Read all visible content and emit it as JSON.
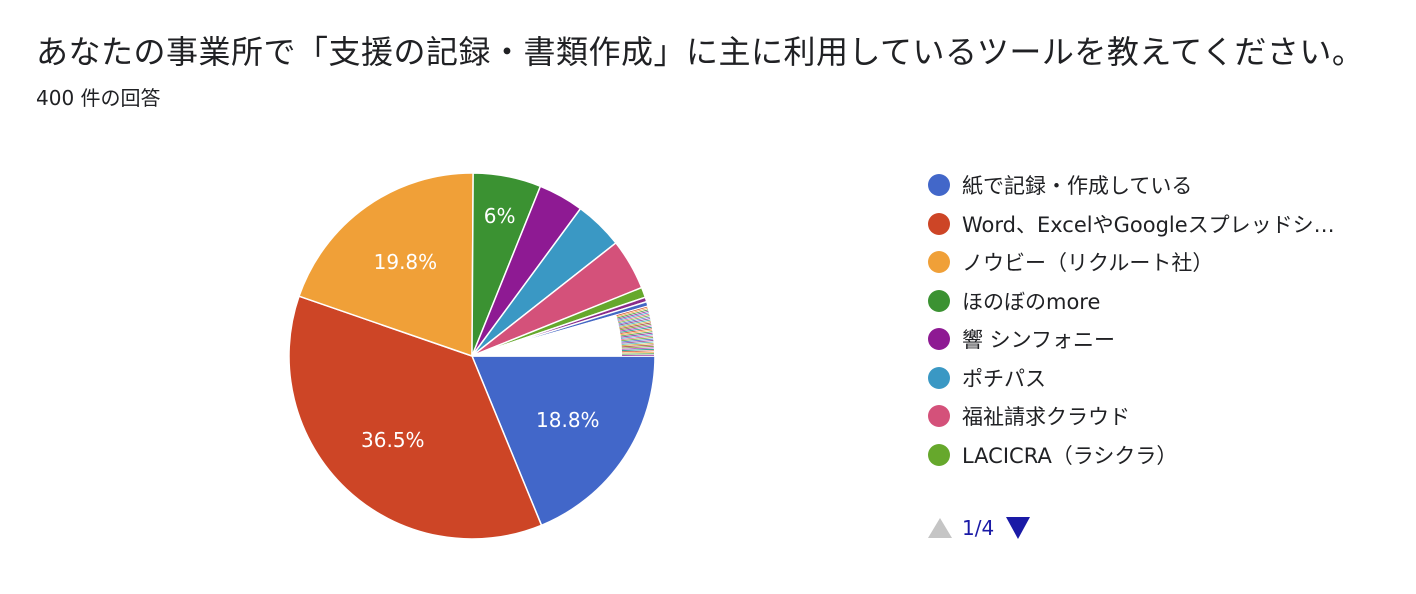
{
  "header": {
    "title": "あなたの事業所で「支援の記録・書類作成」に主に利用しているツールを教えてください。",
    "response_count": "400 件の回答"
  },
  "chart_data": {
    "type": "pie",
    "start": "3 o'clock, clockwise",
    "slices": [
      {
        "name": "紙で記録・作成している",
        "value": 18.8,
        "label": "18.8%",
        "color": "#4267c9"
      },
      {
        "name": "Word、ExcelやGoogleスプレッドシ…",
        "value": 36.5,
        "label": "36.5%",
        "color": "#cd4526"
      },
      {
        "name": "ノウビー（リクルート社）",
        "value": 19.8,
        "label": "19.8%",
        "color": "#f0a038"
      },
      {
        "name": "ほのぼのmore",
        "value": 6.0,
        "label": "6%",
        "color": "#3b9232"
      },
      {
        "name": "響 シンフォニー",
        "value": 4.0,
        "label": "",
        "color": "#8e1a93"
      },
      {
        "name": "ポチパス",
        "value": 4.3,
        "label": "",
        "color": "#3a98c4"
      },
      {
        "name": "福祉請求クラウド",
        "value": 4.5,
        "label": "",
        "color": "#d4517a"
      },
      {
        "name": "LACICRA（ラシクラ）",
        "value": 0.9,
        "label": "",
        "color": "#66a82c"
      },
      {
        "name": "",
        "value": 0.4,
        "label": "",
        "color": "#8a2b8a"
      },
      {
        "name": "",
        "value": 0.4,
        "label": "",
        "color": "#4467c4"
      },
      {
        "name": "",
        "value": 4.4,
        "label": "",
        "color": "#ffffff"
      }
    ],
    "tail_colors": [
      "#cd4526",
      "#f0a038",
      "#3b9232",
      "#8e1a93",
      "#3a98c4",
      "#d4517a",
      "#66a82c",
      "#4267c9",
      "#8a2b8a",
      "#3aa8a8",
      "#c9a227",
      "#a33",
      "#6b8e23",
      "#9c27b0",
      "#00897b"
    ],
    "legend_placement": "right"
  },
  "legend": {
    "items": [
      {
        "label": "紙で記録・作成している",
        "color": "#4267c9"
      },
      {
        "label": "Word、ExcelやGoogleスプレッドシ…",
        "color": "#cd4526"
      },
      {
        "label": "ノウビー（リクルート社）",
        "color": "#f0a038"
      },
      {
        "label": "ほのぼのmore",
        "color": "#3b9232"
      },
      {
        "label": "響 シンフォニー",
        "color": "#8e1a93"
      },
      {
        "label": "ポチパス",
        "color": "#3a98c4"
      },
      {
        "label": "福祉請求クラウド",
        "color": "#d4517a"
      },
      {
        "label": "LACICRA（ラシクラ）",
        "color": "#66a82c"
      }
    ]
  },
  "pager": {
    "text": "1/4"
  }
}
